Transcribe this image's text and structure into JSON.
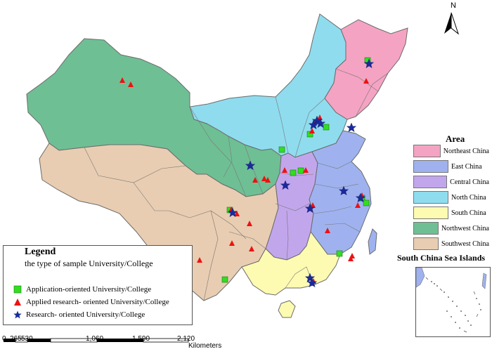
{
  "north_label": "N",
  "legend": {
    "title": "Legend",
    "subtitle": "the type of sample University/College",
    "items": [
      {
        "label": "Application-oriented University/College",
        "symbol": "green-square-icon",
        "color": "#33dd22"
      },
      {
        "label": "Applied research- oriented University/College",
        "symbol": "red-triangle-icon",
        "color": "#ee1111"
      },
      {
        "label": "Research- oriented University/College",
        "symbol": "blue-star-icon",
        "color": "#1a2a9a"
      }
    ]
  },
  "area_legend": {
    "title": "Area",
    "items": [
      {
        "label": "Northeast China",
        "color": "#f5a3c3"
      },
      {
        "label": "East China",
        "color": "#9fb2ef"
      },
      {
        "label": "Central China",
        "color": "#c2a6ec"
      },
      {
        "label": "North China",
        "color": "#8fdcef"
      },
      {
        "label": "South China",
        "color": "#fdfbb2"
      },
      {
        "label": "Northwest China",
        "color": "#6fbf94"
      },
      {
        "label": "Southwest China",
        "color": "#e8cdb2"
      }
    ]
  },
  "inset": {
    "title": "South China Sea Islands"
  },
  "scale_bar": {
    "ticks": [
      "0",
      "265",
      "530",
      "1,060",
      "1,590",
      "2,120"
    ],
    "unit": "Kilometers"
  }
}
